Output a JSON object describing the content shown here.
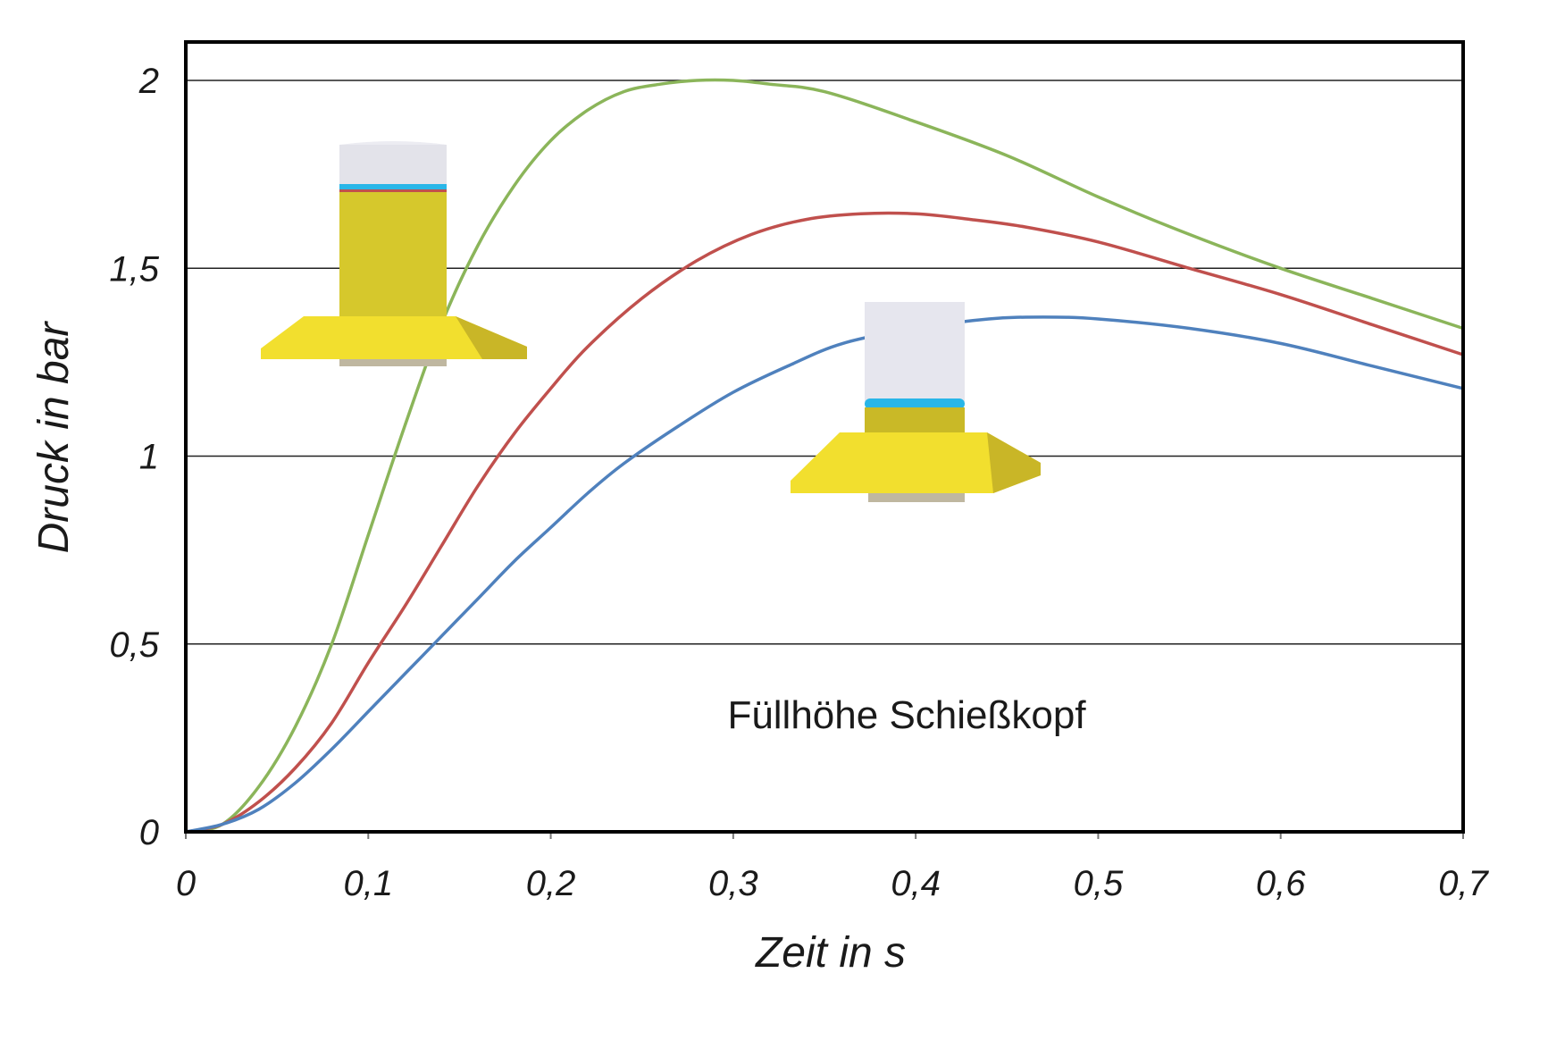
{
  "chart_data": {
    "type": "line",
    "xlabel": "Zeit in s",
    "ylabel": "Druck in bar",
    "xlim": [
      0,
      0.7
    ],
    "ylim": [
      0,
      2.1
    ],
    "x_ticks": [
      "0",
      "0,1",
      "0,2",
      "0,3",
      "0,4",
      "0,5",
      "0,6",
      "0,7"
    ],
    "y_ticks": [
      "0",
      "0,5",
      "1",
      "1,5",
      "2"
    ],
    "grid": "horizontal",
    "annotation": "Füllhöhe Schießkopf",
    "series": [
      {
        "color": "#8bb55a",
        "x": [
          0,
          0.02,
          0.04,
          0.06,
          0.08,
          0.1,
          0.12,
          0.14,
          0.16,
          0.18,
          0.2,
          0.22,
          0.24,
          0.26,
          0.28,
          0.3,
          0.32,
          0.35,
          0.4,
          0.45,
          0.5,
          0.55,
          0.6,
          0.65,
          0.7
        ],
        "values": [
          0,
          0.02,
          0.12,
          0.28,
          0.5,
          0.79,
          1.08,
          1.35,
          1.56,
          1.72,
          1.84,
          1.92,
          1.97,
          1.99,
          2.0,
          2.0,
          1.99,
          1.97,
          1.89,
          1.8,
          1.69,
          1.59,
          1.5,
          1.42,
          1.34
        ]
      },
      {
        "color": "#c0504d",
        "x": [
          0,
          0.02,
          0.04,
          0.06,
          0.08,
          0.1,
          0.12,
          0.14,
          0.16,
          0.18,
          0.2,
          0.22,
          0.25,
          0.28,
          0.31,
          0.34,
          0.37,
          0.4,
          0.43,
          0.46,
          0.5,
          0.55,
          0.6,
          0.65,
          0.7
        ],
        "values": [
          0,
          0.02,
          0.08,
          0.17,
          0.29,
          0.45,
          0.6,
          0.76,
          0.92,
          1.06,
          1.18,
          1.29,
          1.42,
          1.52,
          1.59,
          1.63,
          1.645,
          1.645,
          1.63,
          1.61,
          1.57,
          1.5,
          1.43,
          1.35,
          1.27
        ]
      },
      {
        "color": "#4f81bd",
        "x": [
          0,
          0.02,
          0.04,
          0.06,
          0.08,
          0.1,
          0.12,
          0.14,
          0.16,
          0.18,
          0.2,
          0.22,
          0.24,
          0.27,
          0.3,
          0.33,
          0.36,
          0.4,
          0.44,
          0.47,
          0.5,
          0.55,
          0.6,
          0.65,
          0.7
        ],
        "values": [
          0,
          0.02,
          0.06,
          0.13,
          0.22,
          0.32,
          0.42,
          0.52,
          0.62,
          0.72,
          0.81,
          0.9,
          0.98,
          1.08,
          1.17,
          1.24,
          1.3,
          1.34,
          1.365,
          1.37,
          1.365,
          1.34,
          1.3,
          1.24,
          1.18
        ]
      }
    ],
    "insets": [
      {
        "name": "nozzle-full",
        "fill_fraction": 0.8
      },
      {
        "name": "nozzle-low",
        "fill_fraction": 0.2
      }
    ]
  }
}
